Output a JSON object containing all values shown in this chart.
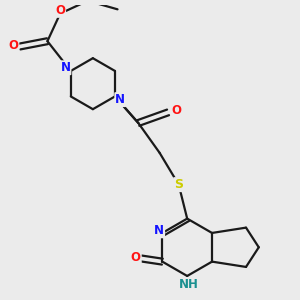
{
  "background_color": "#ebebeb",
  "bond_color": "#1a1a1a",
  "atom_colors": {
    "N": "#1414ff",
    "O": "#ff1414",
    "S": "#cccc00",
    "H": "#1a9090"
  },
  "figsize": [
    3.0,
    3.0
  ],
  "dpi": 100
}
